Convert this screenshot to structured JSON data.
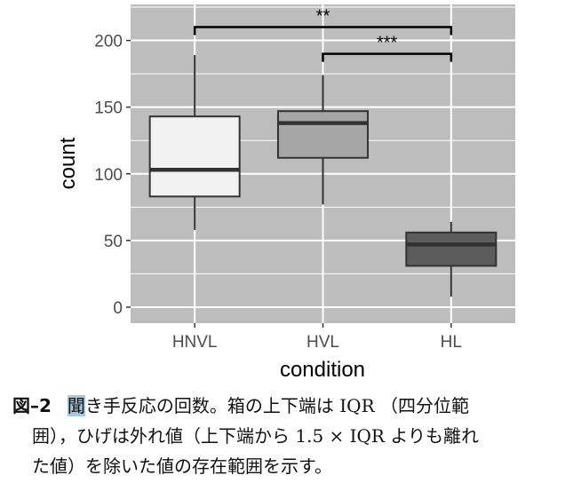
{
  "chart_data": {
    "type": "box",
    "xlabel": "condition",
    "ylabel": "count",
    "ylim": [
      -12,
      227
    ],
    "yticks": [
      0,
      50,
      100,
      150,
      200
    ],
    "categories": [
      "HNVL",
      "HVL",
      "HL"
    ],
    "boxes": [
      {
        "label": "HNVL",
        "whisker_low": 58,
        "q1": 83,
        "median": 103,
        "q3": 143,
        "whisker_high": 189,
        "fill": "#f2f2f2"
      },
      {
        "label": "HVL",
        "whisker_low": 77,
        "q1": 112,
        "median": 138,
        "q3": 147,
        "whisker_high": 174,
        "fill": "#a6a6a6"
      },
      {
        "label": "HL",
        "whisker_low": 8,
        "q1": 31,
        "median": 47,
        "q3": 56,
        "whisker_high": 64,
        "fill": "#5c5c5c"
      }
    ],
    "significance": [
      {
        "from": "HNVL",
        "to": "HL",
        "label": "**",
        "y": 210
      },
      {
        "from": "HVL",
        "to": "HL",
        "label": "***",
        "y": 190
      }
    ],
    "grid": true,
    "panel_background": "#bdbdbd",
    "grid_color": "#ffffff"
  },
  "caption": {
    "figure_number": "図–2",
    "highlighted_char": "聞",
    "line1_rest": "き手反応の回数。箱の上下端は IQR （四分位範",
    "line2": "囲），ひげは外れ値（上下端から 1.5 × IQR よりも離れ",
    "line3": "た値）を除いた値の存在範囲を示す。"
  }
}
